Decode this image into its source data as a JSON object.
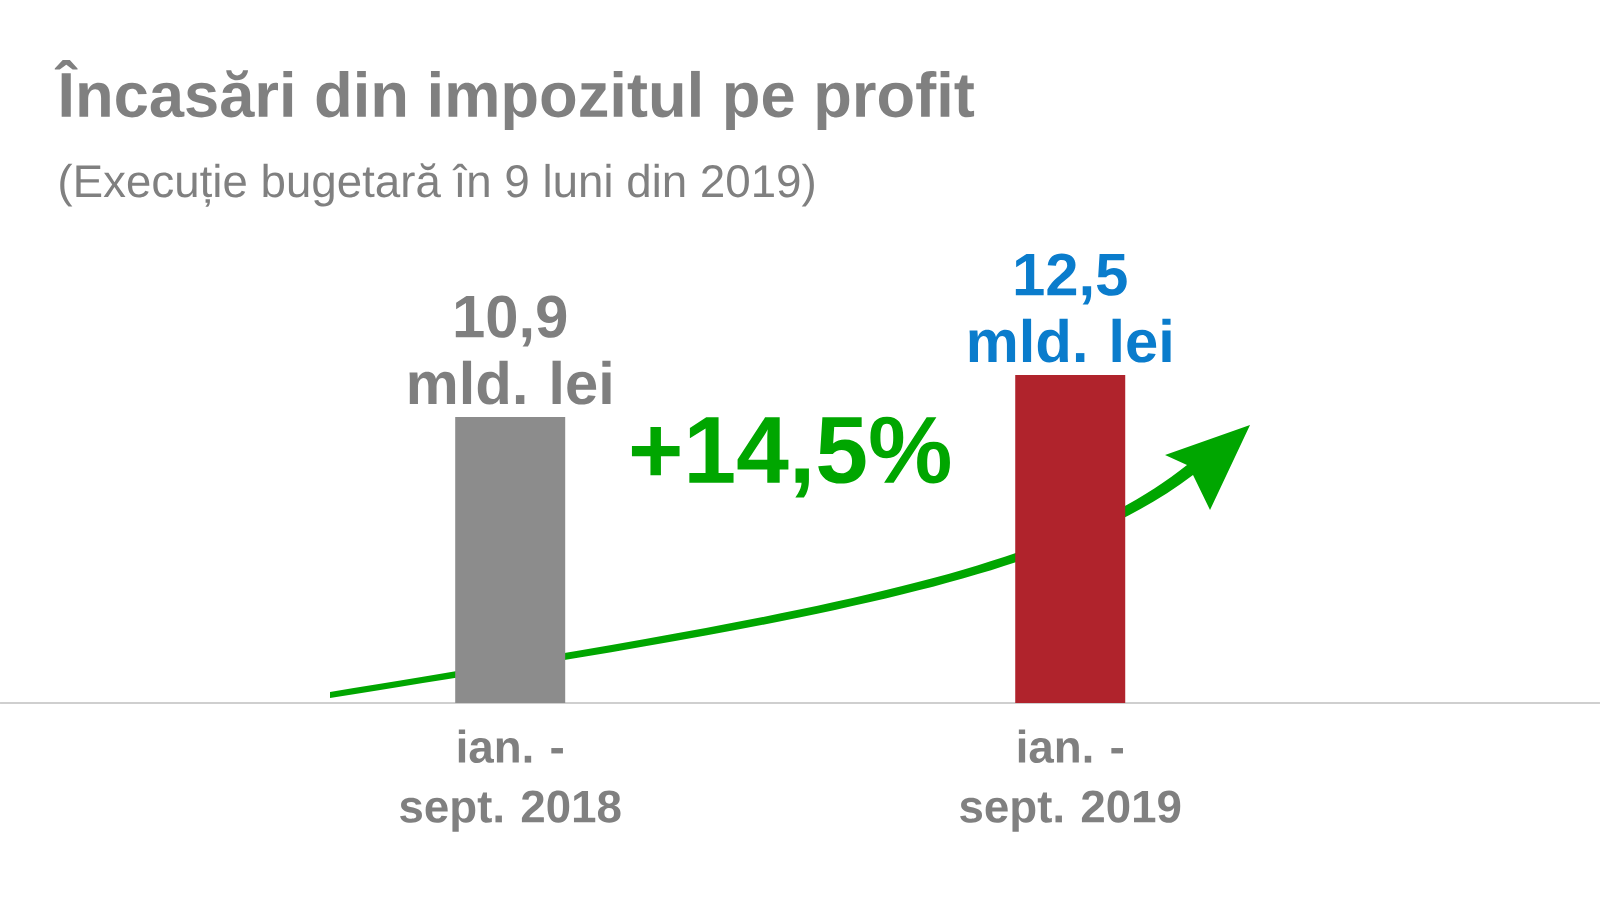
{
  "chart_data": {
    "type": "bar",
    "title": "Încasări din impozitul pe profit",
    "subtitle": "(Execuție bugetară în 9 luni din 2019)",
    "categories": [
      "ian. - sept. 2018",
      "ian. - sept. 2019"
    ],
    "values": [
      10.9,
      12.5
    ],
    "colors": [
      "#8c8c8c",
      "#b0232c"
    ],
    "value_labels": [
      "10,9 mld. lei",
      "12,5 mld. lei"
    ],
    "annotations": [
      "+14,5%"
    ]
  }
}
